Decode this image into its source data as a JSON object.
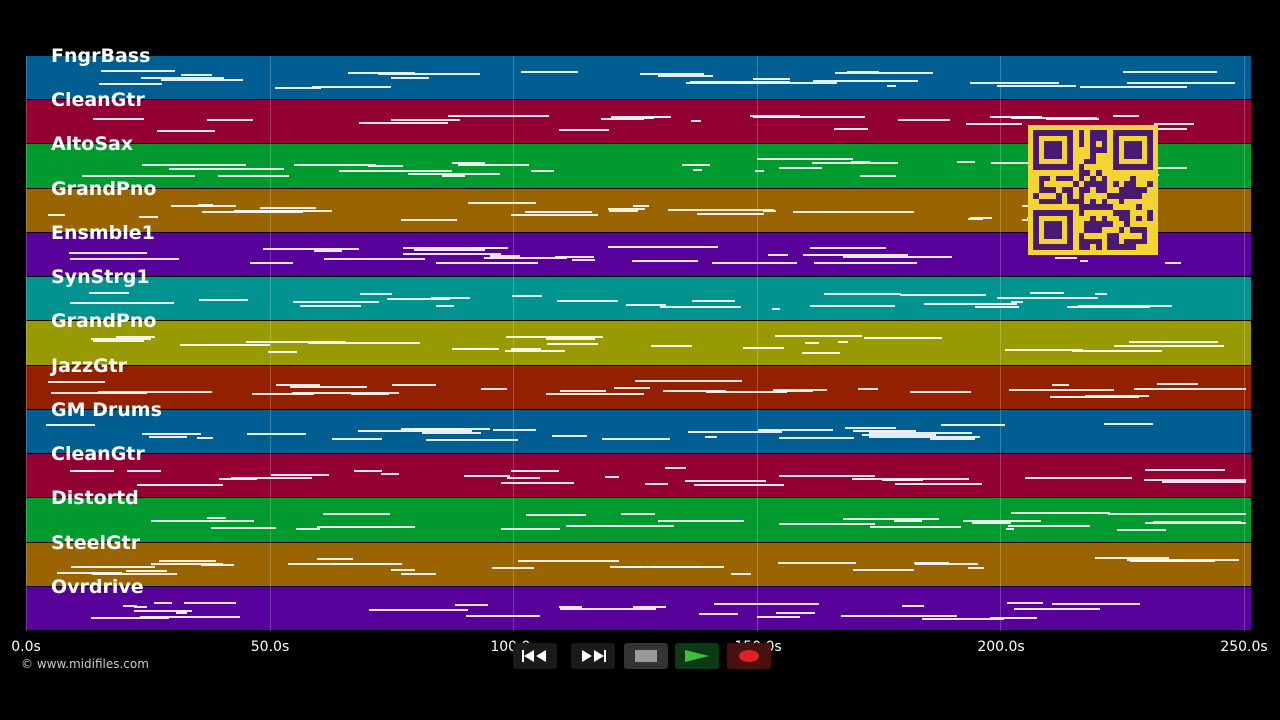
{
  "tracks": [
    {
      "name": "FngrBass",
      "color": "#005e93"
    },
    {
      "name": "CleanGtr",
      "color": "#930033"
    },
    {
      "name": "AltoSax",
      "color": "#009a2e"
    },
    {
      "name": "GrandPno",
      "color": "#9a6500"
    },
    {
      "name": "Ensmble1",
      "color": "#58009a"
    },
    {
      "name": "SynStrg1",
      "color": "#00938f"
    },
    {
      "name": "GrandPno",
      "color": "#979a00"
    },
    {
      "name": "JazzGtr",
      "color": "#932100"
    },
    {
      "name": "GM Drums",
      "color": "#005e93"
    },
    {
      "name": "CleanGtr",
      "color": "#930033"
    },
    {
      "name": "Distortd",
      "color": "#009a2e"
    },
    {
      "name": "SteelGtr",
      "color": "#9a6500"
    },
    {
      "name": "Ovrdrive",
      "color": "#58009a"
    }
  ],
  "timeline": {
    "ticks": [
      "0.0s",
      "50.0s",
      "100.0s",
      "150.0s",
      "200.0s",
      "250.0s"
    ],
    "tick_values": [
      0,
      50,
      100,
      150,
      200,
      250
    ],
    "max_seconds": 251.5
  },
  "copyright": "© www.midifiles.com",
  "transport": {
    "buttons": [
      {
        "name": "rewind-button",
        "icon": "rewind-icon"
      },
      {
        "name": "fast-forward-button",
        "icon": "fast-forward-icon"
      },
      {
        "name": "stop-button",
        "icon": "stop-icon"
      },
      {
        "name": "play-button",
        "icon": "play-icon"
      },
      {
        "name": "record-button",
        "icon": "record-icon"
      }
    ]
  },
  "qr_code": {
    "icon": "qr-code-icon",
    "background": "#f3d433",
    "foreground": "#4a1a73"
  }
}
